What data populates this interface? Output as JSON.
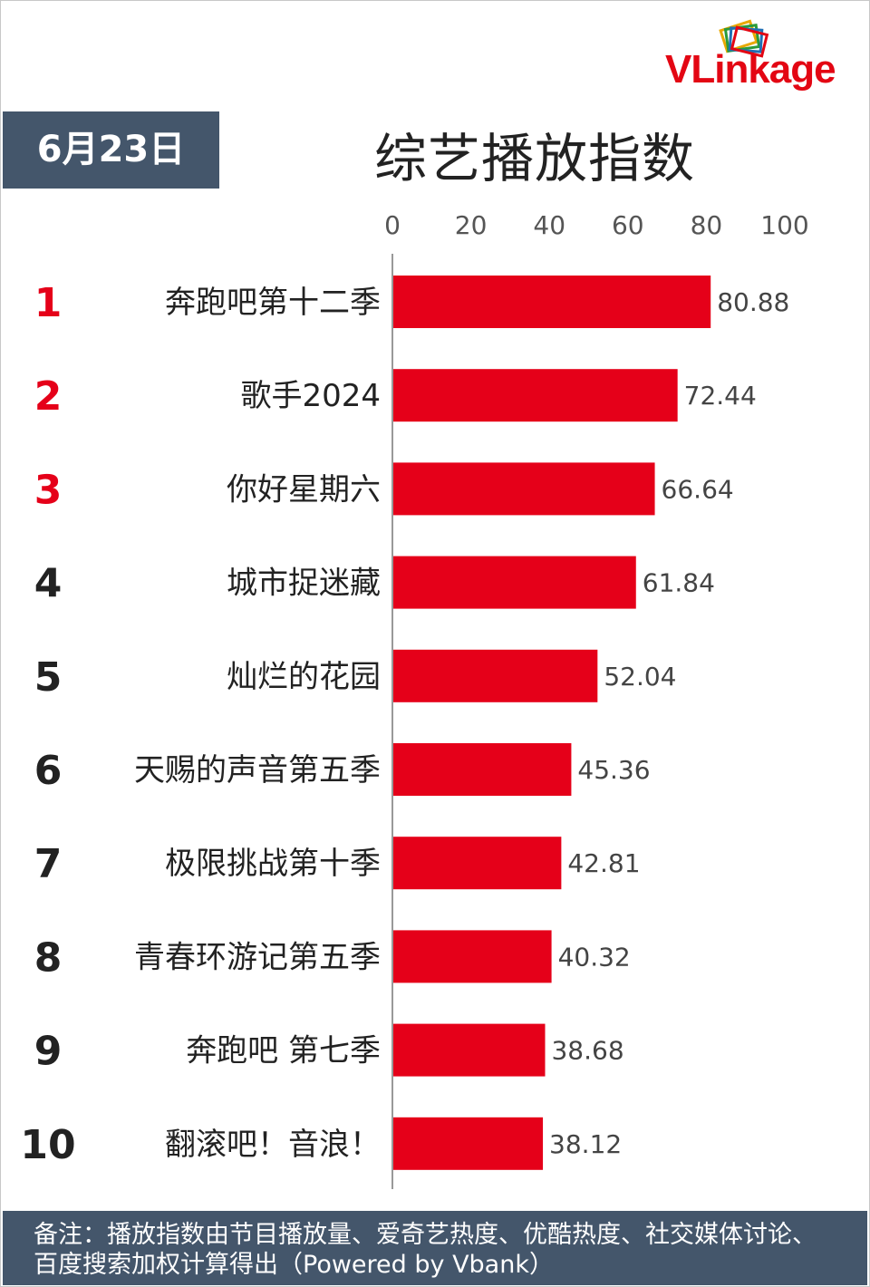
{
  "date_label": "6月23日",
  "logo": {
    "text": "VLinkage",
    "colors": {
      "red": "#e30613",
      "dark": "#1a1a1a"
    }
  },
  "footer_note": "备注：播放指数由节目播放量、爱奇艺热度、优酷热度、社交媒体讨论、百度搜索加权计算得出（Powered by Vbank）",
  "colors": {
    "bar": "#e50019",
    "rank_top": "#e50019",
    "rank_other": "#222222",
    "panel": "#44566b"
  },
  "chart_data": {
    "type": "bar",
    "orientation": "horizontal",
    "title": "综艺播放指数",
    "xlim": [
      0,
      100
    ],
    "xticks": [
      0,
      20,
      40,
      60,
      80,
      100
    ],
    "grid": false,
    "ranks": [
      "1",
      "2",
      "3",
      "4",
      "5",
      "6",
      "7",
      "8",
      "9",
      "10"
    ],
    "categories": [
      "奔跑吧第十二季",
      "歌手2024",
      "你好星期六",
      "城市捉迷藏",
      "灿烂的花园",
      "天赐的声音第五季",
      "极限挑战第十季",
      "青春环游记第五季",
      "奔跑吧 第七季",
      "翻滚吧！音浪！"
    ],
    "values": [
      80.88,
      72.44,
      66.64,
      61.84,
      52.04,
      45.36,
      42.81,
      40.32,
      38.68,
      38.12
    ],
    "value_labels": [
      "80.88",
      "72.44",
      "66.64",
      "61.84",
      "52.04",
      "45.36",
      "42.81",
      "40.32",
      "38.68",
      "38.12"
    ]
  }
}
